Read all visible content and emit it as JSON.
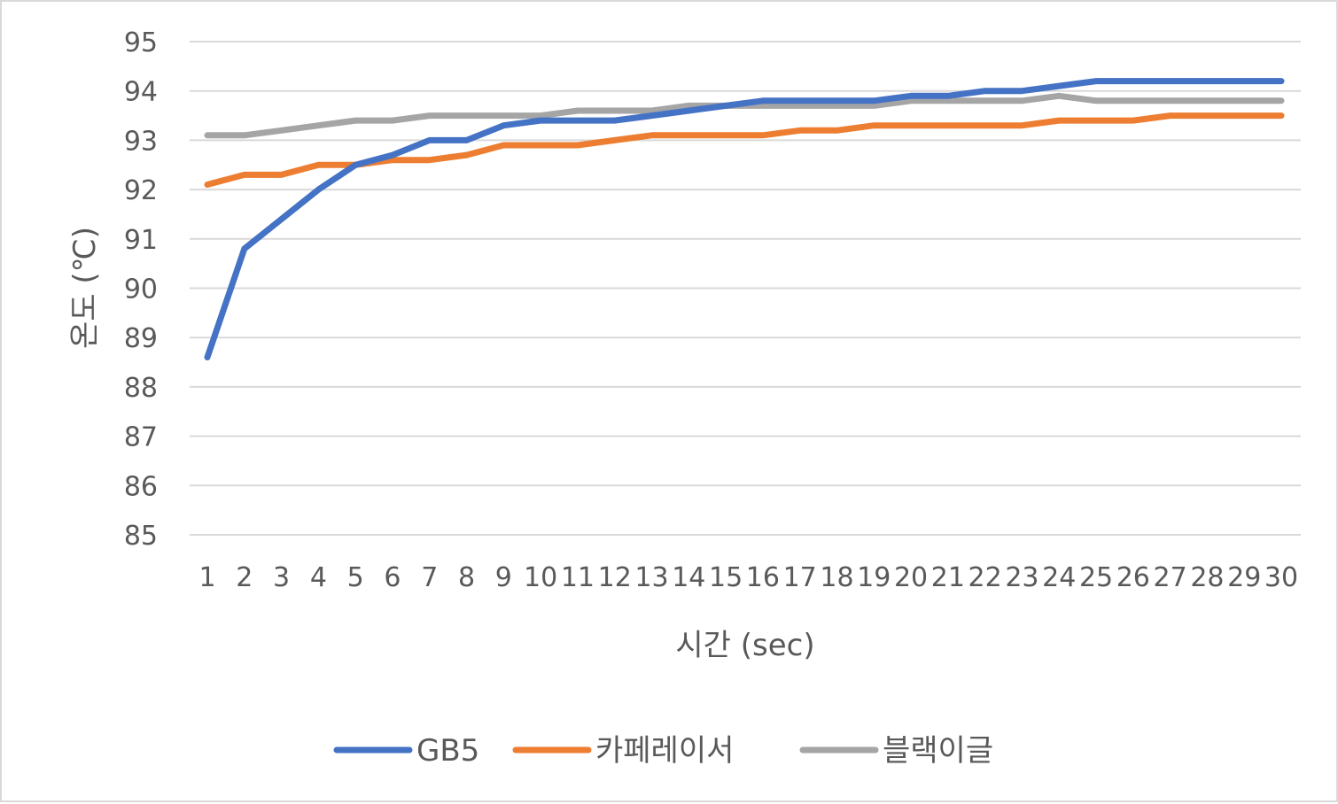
{
  "chart_data": {
    "type": "line",
    "xlabel": "시간 (sec)",
    "ylabel": "온도 (℃)",
    "ylim": [
      85,
      95
    ],
    "yticks": [
      85,
      86,
      87,
      88,
      89,
      90,
      91,
      92,
      93,
      94,
      95
    ],
    "x": [
      1,
      2,
      3,
      4,
      5,
      6,
      7,
      8,
      9,
      10,
      11,
      12,
      13,
      14,
      15,
      16,
      17,
      18,
      19,
      20,
      21,
      22,
      23,
      24,
      25,
      26,
      27,
      28,
      29,
      30
    ],
    "grid": "horizontal",
    "legend": "bottom",
    "series": [
      {
        "name": "GB5",
        "color": "#4472c4",
        "values": [
          88.6,
          90.8,
          91.4,
          92.0,
          92.5,
          92.7,
          93.0,
          93.0,
          93.3,
          93.4,
          93.4,
          93.4,
          93.5,
          93.6,
          93.7,
          93.8,
          93.8,
          93.8,
          93.8,
          93.9,
          93.9,
          94.0,
          94.0,
          94.1,
          94.2,
          94.2,
          94.2,
          94.2,
          94.2,
          94.2
        ]
      },
      {
        "name": "카페레이서",
        "color": "#ed7d31",
        "values": [
          92.1,
          92.3,
          92.3,
          92.5,
          92.5,
          92.6,
          92.6,
          92.7,
          92.9,
          92.9,
          92.9,
          93.0,
          93.1,
          93.1,
          93.1,
          93.1,
          93.2,
          93.2,
          93.3,
          93.3,
          93.3,
          93.3,
          93.3,
          93.4,
          93.4,
          93.4,
          93.5,
          93.5,
          93.5,
          93.5
        ]
      },
      {
        "name": "블랙이글",
        "color": "#a5a5a5",
        "values": [
          93.1,
          93.1,
          93.2,
          93.3,
          93.4,
          93.4,
          93.5,
          93.5,
          93.5,
          93.5,
          93.6,
          93.6,
          93.6,
          93.7,
          93.7,
          93.7,
          93.7,
          93.7,
          93.7,
          93.8,
          93.8,
          93.8,
          93.8,
          93.9,
          93.8,
          93.8,
          93.8,
          93.8,
          93.8,
          93.8
        ]
      }
    ]
  }
}
